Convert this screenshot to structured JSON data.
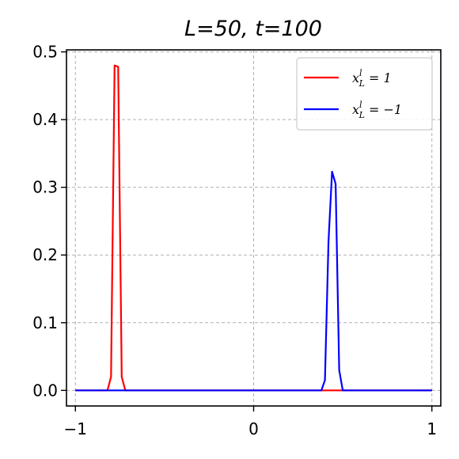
{
  "chart_data": {
    "type": "line",
    "title": "L=50, t=100",
    "xlabel": "",
    "ylabel": "",
    "xlim": [
      -1.05,
      1.05
    ],
    "ylim": [
      -0.023,
      0.503
    ],
    "x_ticks": [
      -1,
      0,
      1
    ],
    "x_tick_labels": [
      "−1",
      "0",
      "1"
    ],
    "y_ticks": [
      0.0,
      0.1,
      0.2,
      0.3,
      0.4,
      0.5
    ],
    "y_tick_labels": [
      "0.0",
      "0.1",
      "0.2",
      "0.3",
      "0.4",
      "0.5"
    ],
    "grid": true,
    "legend_position": "top-right",
    "series": [
      {
        "name": "x_L^l = 1",
        "color": "#ff0000",
        "x": [
          -1.0,
          -0.82,
          -0.8,
          -0.78,
          -0.76,
          -0.74,
          -0.72,
          1.0
        ],
        "y": [
          0.0,
          0.0,
          0.02,
          0.48,
          0.478,
          0.02,
          0.0,
          0.0
        ]
      },
      {
        "name": "x_L^l = −1",
        "color": "#0000ff",
        "x": [
          -1.0,
          0.38,
          0.4,
          0.42,
          0.44,
          0.46,
          0.48,
          0.5,
          1.0
        ],
        "y": [
          0.0,
          0.0,
          0.015,
          0.22,
          0.323,
          0.305,
          0.03,
          0.0,
          0.0
        ]
      }
    ],
    "legend": {
      "entries": [
        {
          "label_main": "x",
          "label_sup": "l",
          "label_sub": "L",
          "label_rest": " = 1"
        },
        {
          "label_main": "x",
          "label_sup": "l",
          "label_sub": "L",
          "label_rest": " = −1"
        }
      ]
    }
  }
}
